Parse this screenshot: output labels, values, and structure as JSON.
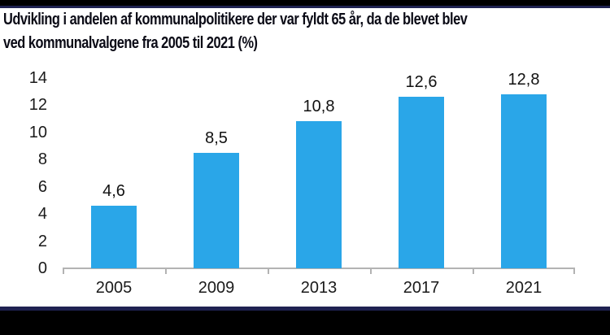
{
  "page": {
    "top_border_color": "#000000",
    "bottom_border_color": "#000000",
    "accent_line_color": "#1f2251",
    "background": "#ffffff"
  },
  "title": {
    "line1": "Udvikling i andelen af kommunalpolitikere der var fyldt 65 år, da de blevet blev",
    "line2": "ved kommunalvalgene fra 2005 til 2021 (%)"
  },
  "chart_data": {
    "type": "bar",
    "title": "Udvikling i andelen af kommunalpolitikere der var fyldt 65 år, da de blevet blev ved kommunalvalgene fra 2005 til 2021 (%)",
    "categories": [
      "2005",
      "2009",
      "2013",
      "2017",
      "2021"
    ],
    "values": [
      4.6,
      8.5,
      10.8,
      12.6,
      12.8
    ],
    "value_labels": [
      "4,6",
      "8,5",
      "10,8",
      "12,6",
      "12,8"
    ],
    "xlabel": "",
    "ylabel": "",
    "ylim": [
      0,
      14
    ],
    "yticks": [
      0,
      2,
      4,
      6,
      8,
      10,
      12,
      14
    ],
    "grid": false,
    "legend_position": "none",
    "bar_color": "#2aa6e8",
    "axis_color": "#b3b3b3",
    "tick_label_color": "#1a1a1a",
    "value_label_color": "#111111",
    "decimal_separator": ","
  }
}
